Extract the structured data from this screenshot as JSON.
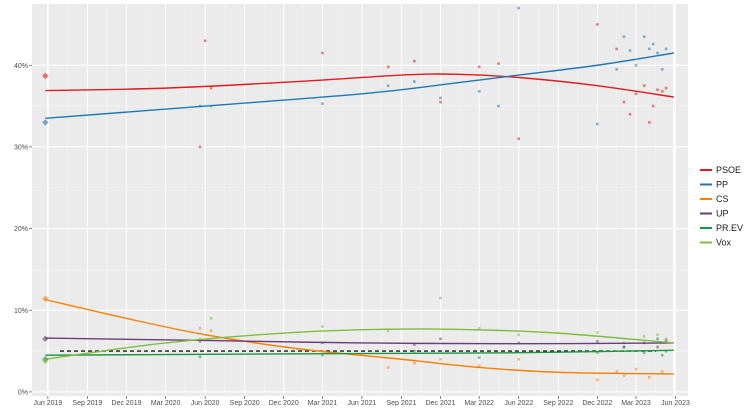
{
  "chart_data": {
    "type": "scatter",
    "title": "",
    "xlabel": "",
    "ylabel": "",
    "ylim": [
      -0.5,
      47.5
    ],
    "xlim": [
      "2019-04-25",
      "2023-06-30"
    ],
    "grid": true,
    "legend_position": "right",
    "y_ticks": [
      {
        "value": 0,
        "label": "0%"
      },
      {
        "value": 10,
        "label": "10%"
      },
      {
        "value": 20,
        "label": "20%"
      },
      {
        "value": 30,
        "label": "30%"
      },
      {
        "value": 40,
        "label": "40%"
      }
    ],
    "x_ticks": [
      {
        "date": "2019-06-01",
        "label": "Jun 2019"
      },
      {
        "date": "2019-09-01",
        "label": "Sep 2019"
      },
      {
        "date": "2019-12-01",
        "label": "Dec 2019"
      },
      {
        "date": "2020-03-01",
        "label": "Mar 2020"
      },
      {
        "date": "2020-06-01",
        "label": "Jun 2020"
      },
      {
        "date": "2020-09-01",
        "label": "Sep 2020"
      },
      {
        "date": "2020-12-01",
        "label": "Dec 2020"
      },
      {
        "date": "2021-03-01",
        "label": "Mar 2021"
      },
      {
        "date": "2021-06-01",
        "label": "Jun 2021"
      },
      {
        "date": "2021-09-01",
        "label": "Sep 2021"
      },
      {
        "date": "2021-12-01",
        "label": "Dec 2021"
      },
      {
        "date": "2022-03-01",
        "label": "Mar 2022"
      },
      {
        "date": "2022-06-01",
        "label": "Jun 2022"
      },
      {
        "date": "2022-09-01",
        "label": "Sep 2022"
      },
      {
        "date": "2022-12-01",
        "label": "Dec 2022"
      },
      {
        "date": "2023-03-01",
        "label": "Mar 2023"
      },
      {
        "date": "2023-06-01",
        "label": "Jun 2023"
      }
    ],
    "reference_lines": [
      {
        "date": "2019-06-01",
        "color": "#ffffff"
      },
      {
        "date": "2023-05-28",
        "color": "#ffffff"
      },
      {
        "value": 5,
        "style": "dashed",
        "color": "#1a1a1a"
      }
    ],
    "series": [
      {
        "name": "PSOE",
        "color": "#e41a1c",
        "result": {
          "date": "2019-05-26",
          "value": 38.7
        },
        "trend": [
          [
            "2019-05-26",
            36.9
          ],
          [
            "2020-03-01",
            37.2
          ],
          [
            "2021-01-01",
            38.0
          ],
          [
            "2021-09-01",
            38.8
          ],
          [
            "2022-01-01",
            38.9
          ],
          [
            "2022-06-01",
            38.5
          ],
          [
            "2022-12-01",
            37.5
          ],
          [
            "2023-05-28",
            36.1
          ]
        ],
        "points": [
          [
            "2020-05-20",
            30.0
          ],
          [
            "2020-06-01",
            43.0
          ],
          [
            "2020-06-15",
            37.2
          ],
          [
            "2021-03-01",
            41.5
          ],
          [
            "2021-08-01",
            39.8
          ],
          [
            "2021-10-01",
            40.5
          ],
          [
            "2021-12-01",
            35.5
          ],
          [
            "2022-03-01",
            39.8
          ],
          [
            "2022-04-15",
            40.2
          ],
          [
            "2022-06-01",
            31.0
          ],
          [
            "2022-12-01",
            45.0
          ],
          [
            "2023-01-15",
            42.0
          ],
          [
            "2023-02-01",
            35.5
          ],
          [
            "2023-02-15",
            34.0
          ],
          [
            "2023-03-01",
            36.5
          ],
          [
            "2023-03-20",
            37.5
          ],
          [
            "2023-04-01",
            33.0
          ],
          [
            "2023-04-10",
            35.0
          ],
          [
            "2023-04-20",
            37.0
          ],
          [
            "2023-05-01",
            36.8
          ],
          [
            "2023-05-10",
            37.2
          ]
        ]
      },
      {
        "name": "PP",
        "color": "#1f78b4",
        "result": {
          "date": "2019-05-26",
          "value": 33.0
        },
        "trend": [
          [
            "2019-05-26",
            33.5
          ],
          [
            "2020-06-01",
            35.0
          ],
          [
            "2021-06-01",
            36.5
          ],
          [
            "2022-01-01",
            37.8
          ],
          [
            "2022-06-01",
            38.8
          ],
          [
            "2022-12-01",
            40.0
          ],
          [
            "2023-05-28",
            41.5
          ]
        ],
        "points": [
          [
            "2020-05-20",
            35.0
          ],
          [
            "2020-06-15",
            35.0
          ],
          [
            "2021-03-01",
            35.3
          ],
          [
            "2021-08-01",
            37.5
          ],
          [
            "2021-10-01",
            38.0
          ],
          [
            "2021-12-01",
            36.0
          ],
          [
            "2022-03-01",
            36.8
          ],
          [
            "2022-04-15",
            35.0
          ],
          [
            "2022-06-01",
            47.0
          ],
          [
            "2022-12-01",
            32.8
          ],
          [
            "2023-01-15",
            39.5
          ],
          [
            "2023-02-01",
            43.5
          ],
          [
            "2023-02-15",
            41.8
          ],
          [
            "2023-03-01",
            40.0
          ],
          [
            "2023-03-20",
            43.5
          ],
          [
            "2023-04-01",
            42.0
          ],
          [
            "2023-04-10",
            42.6
          ],
          [
            "2023-04-20",
            41.5
          ],
          [
            "2023-05-01",
            39.5
          ],
          [
            "2023-05-10",
            42.0
          ]
        ]
      },
      {
        "name": "CS",
        "color": "#ff7f00",
        "result": {
          "date": "2019-05-26",
          "value": 11.4
        },
        "trend": [
          [
            "2019-05-26",
            11.3
          ],
          [
            "2019-12-01",
            9.0
          ],
          [
            "2020-06-01",
            7.0
          ],
          [
            "2021-01-01",
            5.3
          ],
          [
            "2021-09-01",
            4.0
          ],
          [
            "2022-03-01",
            3.0
          ],
          [
            "2022-09-01",
            2.4
          ],
          [
            "2023-05-28",
            2.2
          ]
        ],
        "points": [
          [
            "2020-05-20",
            7.8
          ],
          [
            "2020-06-15",
            7.5
          ],
          [
            "2021-03-01",
            5.0
          ],
          [
            "2021-08-01",
            3.0
          ],
          [
            "2021-10-01",
            3.5
          ],
          [
            "2021-12-01",
            4.0
          ],
          [
            "2022-03-01",
            3.2
          ],
          [
            "2022-06-01",
            4.0
          ],
          [
            "2022-12-01",
            1.5
          ],
          [
            "2023-01-15",
            2.5
          ],
          [
            "2023-02-01",
            2.0
          ],
          [
            "2023-03-01",
            2.8
          ],
          [
            "2023-04-01",
            1.8
          ],
          [
            "2023-05-01",
            2.5
          ]
        ]
      },
      {
        "name": "UP",
        "color": "#6a3d7a",
        "result": {
          "date": "2019-05-26",
          "value": 6.5
        },
        "trend": [
          [
            "2019-05-26",
            6.6
          ],
          [
            "2020-06-01",
            6.3
          ],
          [
            "2021-06-01",
            6.0
          ],
          [
            "2022-06-01",
            5.9
          ],
          [
            "2023-05-28",
            6.0
          ]
        ],
        "points": [
          [
            "2020-05-20",
            6.2
          ],
          [
            "2021-03-01",
            6.0
          ],
          [
            "2021-10-01",
            5.8
          ],
          [
            "2021-12-01",
            6.5
          ],
          [
            "2022-06-01",
            6.0
          ],
          [
            "2022-12-01",
            6.2
          ],
          [
            "2023-02-01",
            5.5
          ],
          [
            "2023-03-20",
            6.0
          ],
          [
            "2023-04-20",
            5.5
          ],
          [
            "2023-05-10",
            6.3
          ]
        ]
      },
      {
        "name": "PR.EV",
        "color": "#1a9641",
        "result": {
          "date": "2019-05-26",
          "value": 4.0
        },
        "trend": [
          [
            "2019-05-26",
            4.5
          ],
          [
            "2020-06-01",
            4.6
          ],
          [
            "2021-06-01",
            4.7
          ],
          [
            "2022-06-01",
            4.8
          ],
          [
            "2023-05-28",
            5.1
          ]
        ],
        "points": [
          [
            "2020-05-20",
            4.3
          ],
          [
            "2021-03-01",
            4.5
          ],
          [
            "2021-10-01",
            5.0
          ],
          [
            "2022-03-01",
            4.2
          ],
          [
            "2022-12-01",
            4.8
          ],
          [
            "2023-02-01",
            5.5
          ],
          [
            "2023-03-20",
            4.8
          ],
          [
            "2023-04-20",
            6.5
          ],
          [
            "2023-05-01",
            4.5
          ],
          [
            "2023-05-10",
            5.0
          ]
        ]
      },
      {
        "name": "Vox",
        "color": "#7fbc41",
        "result": {
          "date": "2019-05-26",
          "value": 3.8
        },
        "trend": [
          [
            "2019-05-26",
            4.0
          ],
          [
            "2020-03-01",
            6.0
          ],
          [
            "2021-01-01",
            7.3
          ],
          [
            "2021-09-01",
            7.7
          ],
          [
            "2022-03-01",
            7.6
          ],
          [
            "2022-09-01",
            7.2
          ],
          [
            "2023-05-28",
            6.0
          ]
        ],
        "points": [
          [
            "2020-05-20",
            6.5
          ],
          [
            "2020-06-15",
            9.0
          ],
          [
            "2021-03-01",
            8.0
          ],
          [
            "2021-08-01",
            7.5
          ],
          [
            "2021-12-01",
            11.5
          ],
          [
            "2022-03-01",
            7.8
          ],
          [
            "2022-06-01",
            7.0
          ],
          [
            "2022-12-01",
            7.3
          ],
          [
            "2023-02-01",
            6.0
          ],
          [
            "2023-03-20",
            6.8
          ],
          [
            "2023-04-20",
            7.0
          ],
          [
            "2023-05-10",
            6.5
          ]
        ]
      }
    ]
  }
}
